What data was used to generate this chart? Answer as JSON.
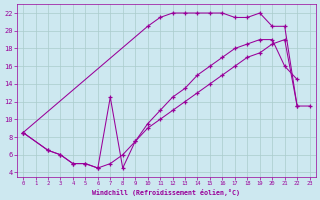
{
  "xlabel": "Windchill (Refroidissement éolien,°C)",
  "bg_color": "#cde8f0",
  "grid_color": "#aacccc",
  "line_color": "#990099",
  "xlim": [
    -0.5,
    23.5
  ],
  "ylim": [
    3.5,
    23
  ],
  "xticks": [
    0,
    1,
    2,
    3,
    4,
    5,
    6,
    7,
    8,
    9,
    10,
    11,
    12,
    13,
    14,
    15,
    16,
    17,
    18,
    19,
    20,
    21,
    22,
    23
  ],
  "yticks": [
    4,
    6,
    8,
    10,
    12,
    14,
    16,
    18,
    20,
    22
  ],
  "line_a_x": [
    0,
    10,
    11,
    12,
    13,
    14,
    15,
    16,
    17,
    18,
    19,
    20,
    21,
    22
  ],
  "line_a_y": [
    8.5,
    20.5,
    21.5,
    22.0,
    22.0,
    22.0,
    22.0,
    22.0,
    21.5,
    21.5,
    22.0,
    20.5,
    20.5,
    11.5
  ],
  "line_b_x": [
    0,
    2,
    3,
    4,
    5,
    6,
    7,
    8,
    9,
    10,
    11,
    12,
    13,
    14,
    15,
    16,
    17,
    18,
    19,
    20,
    21,
    22,
    23
  ],
  "line_b_y": [
    8.5,
    6.5,
    6.0,
    5.0,
    5.0,
    4.5,
    5.0,
    6.0,
    7.5,
    9.0,
    10.0,
    11.0,
    12.0,
    13.0,
    14.0,
    15.0,
    16.0,
    17.0,
    17.5,
    18.5,
    19.0,
    11.5,
    11.5
  ],
  "line_c_x": [
    0,
    2,
    3,
    4,
    5,
    6,
    7,
    8,
    9,
    10,
    11,
    12,
    13,
    14,
    15,
    16,
    17,
    18,
    19,
    20,
    21,
    22
  ],
  "line_c_y": [
    8.5,
    6.5,
    6.0,
    5.0,
    5.0,
    4.5,
    12.5,
    4.5,
    7.5,
    9.5,
    11.0,
    12.5,
    13.5,
    15.0,
    16.0,
    17.0,
    18.0,
    18.5,
    19.0,
    19.0,
    16.0,
    14.5
  ]
}
